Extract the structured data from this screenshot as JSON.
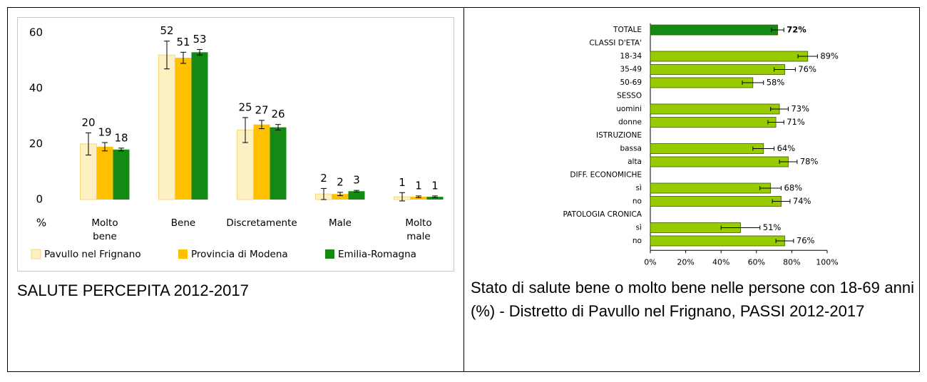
{
  "chart_data": [
    {
      "type": "bar",
      "caption": "SALUTE PERCEPITA 2012-2017",
      "y_label": "%",
      "categories": [
        "Molto bene",
        "Bene",
        "Discretamente",
        "Male",
        "Molto male"
      ],
      "ylim": [
        0,
        60
      ],
      "yticks": [
        0,
        20,
        40,
        60
      ],
      "grid": false,
      "legend": "bottom",
      "series": [
        {
          "name": "Pavullo nel Frignano",
          "color": "#fdf1c4",
          "values": [
            20,
            52,
            25,
            2,
            1
          ],
          "errors": [
            4,
            5,
            4.5,
            2,
            1.5
          ]
        },
        {
          "name": "Provincia di Modena",
          "color": "#ffc000",
          "values": [
            19,
            51,
            27,
            2,
            1
          ],
          "errors": [
            1.5,
            2,
            1.5,
            0.6,
            0.3
          ]
        },
        {
          "name": "Emilia-Romagna",
          "color": "#138a13",
          "values": [
            18,
            53,
            26,
            3,
            1
          ],
          "errors": [
            0.5,
            1,
            1,
            0.3,
            0.3
          ]
        }
      ]
    },
    {
      "type": "barh",
      "caption": "Stato di salute bene o molto bene nelle persone con 18-69 anni (%) - Distretto di Pavullo nel Frignano, PASSI 2012-2017",
      "categories": [
        "TOTALE",
        "CLASSI D'ETA'",
        "18-34",
        "35-49",
        "50-69",
        "SESSO",
        "uomini",
        "donne",
        "ISTRUZIONE",
        "bassa",
        "alta",
        "DIFF. ECONOMICHE",
        "sì",
        "no",
        "PATOLOGIA CRONICA",
        "sì",
        "no"
      ],
      "values": [
        72,
        null,
        89,
        76,
        58,
        null,
        73,
        71,
        null,
        64,
        78,
        null,
        68,
        74,
        null,
        51,
        76
      ],
      "value_labels": [
        "72%",
        null,
        "89%",
        "76%",
        "58%",
        null,
        "73%",
        "71%",
        null,
        "64%",
        "78%",
        null,
        "68%",
        "74%",
        null,
        "51%",
        "76%"
      ],
      "errors": [
        3.5,
        null,
        5.5,
        6,
        6,
        null,
        5,
        4.5,
        null,
        6,
        5,
        null,
        6,
        5,
        null,
        11,
        5
      ],
      "colors": [
        "#138a13",
        null,
        "#99cc00",
        "#99cc00",
        "#99cc00",
        null,
        "#99cc00",
        "#99cc00",
        null,
        "#99cc00",
        "#99cc00",
        null,
        "#99cc00",
        "#99cc00",
        null,
        "#99cc00",
        "#99cc00"
      ],
      "xlim": [
        0,
        100
      ],
      "xticks": [
        {
          "value": 0,
          "label": "0%"
        },
        {
          "value": 20,
          "label": "20%"
        },
        {
          "value": 40,
          "label": "40%"
        },
        {
          "value": 60,
          "label": "60%"
        },
        {
          "value": 80,
          "label": "80%"
        },
        {
          "value": 100,
          "label": "100%"
        }
      ]
    }
  ]
}
